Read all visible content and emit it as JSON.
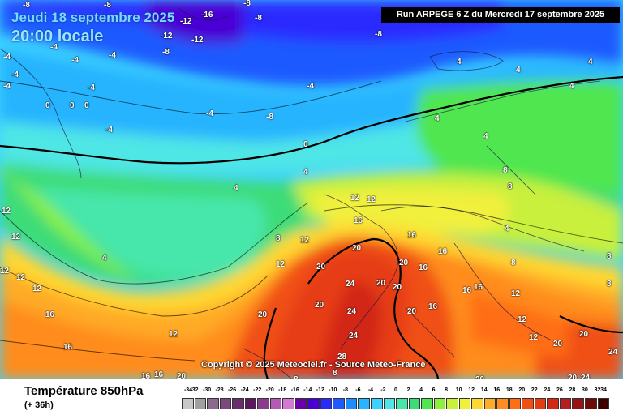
{
  "header": {
    "date": "Jeudi 18 septembre 2025",
    "time": "20:00 locale",
    "run": "Run ARPEGE 6 Z du Mercredi 17 septembre 2025"
  },
  "copyright": "Copyright © 2025 Meteociel.fr - Source Meteo-France",
  "parameter": {
    "title": "Température 850hPa",
    "lead": "(+ 36h)"
  },
  "legend": {
    "ticks": [
      "-34",
      "-32",
      "-30",
      "-28",
      "-26",
      "-24",
      "-22",
      "-20",
      "-18",
      "-16",
      "-14",
      "-12",
      "-10",
      "-8",
      "-6",
      "-4",
      "-2",
      "0",
      "2",
      "4",
      "6",
      "8",
      "10",
      "12",
      "14",
      "16",
      "18",
      "20",
      "22",
      "24",
      "26",
      "28",
      "30",
      "32",
      "34"
    ],
    "colors": [
      "#c8c8c8",
      "#a0a0a0",
      "#8c6a8c",
      "#7a4a7a",
      "#6a2c6a",
      "#5a1a5a",
      "#8c3a8c",
      "#b45ab4",
      "#d27ad2",
      "#6a00aa",
      "#4a00d4",
      "#2a2aff",
      "#1e5aff",
      "#1e8cff",
      "#28b4ff",
      "#3cd2ff",
      "#50e6e6",
      "#46e6aa",
      "#3cdc78",
      "#50e650",
      "#8cf03c",
      "#c8f03c",
      "#f0f03c",
      "#ffd732",
      "#ffaa28",
      "#ff8c1e",
      "#ff6e14",
      "#f05014",
      "#e63c14",
      "#d22814",
      "#b41e1e",
      "#961414",
      "#6e0a0a",
      "#3c0000"
    ]
  },
  "map": {
    "labels": [
      {
        "t": "-8"
      },
      {
        "t": "-8"
      },
      {
        "t": "-12"
      },
      {
        "t": "-16"
      },
      {
        "t": "-12"
      },
      {
        "t": "-8"
      },
      {
        "t": "-12"
      },
      {
        "t": "-8"
      },
      {
        "t": "-8"
      },
      {
        "t": "-8"
      },
      {
        "t": "-4"
      },
      {
        "t": "-4"
      },
      {
        "t": "-4"
      },
      {
        "t": "-4"
      },
      {
        "t": "-4"
      },
      {
        "t": "-4"
      },
      {
        "t": "-4"
      },
      {
        "t": "-8"
      },
      {
        "t": "-4"
      },
      {
        "t": "-4"
      },
      {
        "t": "-4"
      },
      {
        "t": "4"
      },
      {
        "t": "4"
      },
      {
        "t": "4"
      },
      {
        "t": "4"
      },
      {
        "t": "4"
      },
      {
        "t": "0"
      },
      {
        "t": "0"
      },
      {
        "t": "0"
      },
      {
        "t": "0"
      },
      {
        "t": "4"
      },
      {
        "t": "4"
      },
      {
        "t": "4"
      },
      {
        "t": "4"
      },
      {
        "t": "8"
      },
      {
        "t": "8"
      },
      {
        "t": "8"
      },
      {
        "t": "8"
      },
      {
        "t": "8"
      },
      {
        "t": "12"
      },
      {
        "t": "12"
      },
      {
        "t": "12"
      },
      {
        "t": "12"
      },
      {
        "t": "12"
      },
      {
        "t": "12"
      },
      {
        "t": "12"
      },
      {
        "t": "12"
      },
      {
        "t": "12"
      },
      {
        "t": "12"
      },
      {
        "t": "12"
      },
      {
        "t": "12"
      },
      {
        "t": "12"
      },
      {
        "t": "16"
      },
      {
        "t": "16"
      },
      {
        "t": "16"
      },
      {
        "t": "16"
      },
      {
        "t": "16"
      },
      {
        "t": "16"
      },
      {
        "t": "16"
      },
      {
        "t": "16"
      },
      {
        "t": "16"
      },
      {
        "t": "16"
      },
      {
        "t": "16"
      },
      {
        "t": "20"
      },
      {
        "t": "20"
      },
      {
        "t": "20"
      },
      {
        "t": "20"
      },
      {
        "t": "20"
      },
      {
        "t": "20"
      },
      {
        "t": "20"
      },
      {
        "t": "20"
      },
      {
        "t": "20"
      },
      {
        "t": "20"
      },
      {
        "t": "20"
      },
      {
        "t": "20"
      },
      {
        "t": "20"
      },
      {
        "t": "24"
      },
      {
        "t": "24"
      },
      {
        "t": "24"
      },
      {
        "t": "24"
      },
      {
        "t": "24"
      },
      {
        "t": "28"
      },
      {
        "t": "8"
      },
      {
        "t": "8"
      },
      {
        "t": "4"
      },
      {
        "t": "8"
      }
    ]
  }
}
